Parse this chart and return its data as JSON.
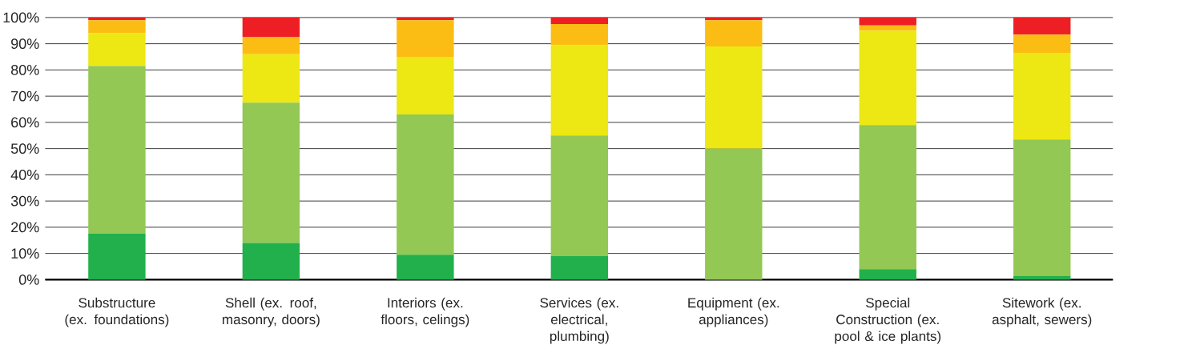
{
  "chart_data": {
    "type": "bar",
    "stacked": true,
    "grid": "y",
    "categories": [
      "Substructure (ex. foundations)",
      "Shell (ex. roof, masonry, doors)",
      "Interiors (ex. floors, celings)",
      "Services (ex. electrical, plumbing)",
      "Equipment (ex. appliances)",
      "Special Construction (ex. pool & ice plants)",
      "Sitework (ex. asphalt, sewers)"
    ],
    "series": [
      {
        "color": "#21b04b",
        "values": [
          17.5,
          14,
          9.5,
          9,
          0,
          4,
          1.5
        ]
      },
      {
        "color": "#92c853",
        "values": [
          64,
          53.5,
          53.5,
          46,
          50,
          55,
          52
        ]
      },
      {
        "color": "#ede714",
        "values": [
          12.5,
          18.5,
          22,
          34.5,
          39,
          36,
          33
        ]
      },
      {
        "color": "#fbbd13",
        "values": [
          5,
          6.5,
          14,
          8,
          10,
          2,
          7
        ]
      },
      {
        "color": "#ee1f24",
        "values": [
          1,
          7.5,
          1,
          2.5,
          1,
          3,
          6.5
        ]
      }
    ],
    "ylim": [
      0,
      100
    ],
    "yticks": [
      {
        "value": 0,
        "label": "0%"
      },
      {
        "value": 10,
        "label": "10%"
      },
      {
        "value": 20,
        "label": "20%"
      },
      {
        "value": 30,
        "label": "30%"
      },
      {
        "value": 40,
        "label": "40%"
      },
      {
        "value": 50,
        "label": "50%"
      },
      {
        "value": 60,
        "label": "60%"
      },
      {
        "value": 70,
        "label": "70%"
      },
      {
        "value": 80,
        "label": "80%"
      },
      {
        "value": 90,
        "label": "90%"
      },
      {
        "value": 100,
        "label": "100%"
      }
    ]
  }
}
